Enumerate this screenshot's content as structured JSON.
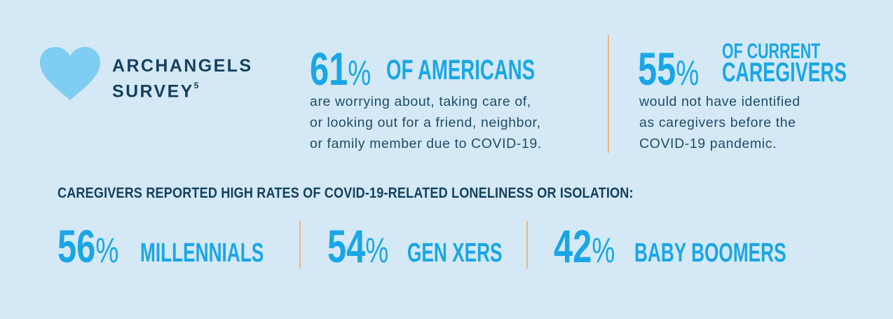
{
  "survey": {
    "title_line1": "ARCHANGELS",
    "title_line2": "SURVEY",
    "footnote": "5"
  },
  "stat_americans": {
    "number": "61",
    "percent": "%",
    "label": "OF AMERICANS",
    "description_lines": [
      "are worrying about, taking care of,",
      "or looking out for a friend, neighbor,",
      "or family member due to COVID-19."
    ]
  },
  "stat_caregivers": {
    "number": "55",
    "percent": "%",
    "label_line1": "OF CURRENT",
    "label_line2": "CAREGIVERS",
    "description_lines": [
      "would not have identified",
      "as caregivers before the",
      "COVID-19 pandemic."
    ]
  },
  "section_heading": "CAREGIVERS REPORTED HIGH RATES OF COVID-19-RELATED LONELINESS OR ISOLATION:",
  "generations": [
    {
      "number": "56",
      "percent": "%",
      "label": "MILLENNIALS"
    },
    {
      "number": "54",
      "percent": "%",
      "label": "GEN XERS"
    },
    {
      "number": "42",
      "percent": "%",
      "label": "BABY BOOMERS"
    }
  ],
  "colors": {
    "background": "#d4e9f5",
    "accent_blue": "#1aa6e6",
    "heart": "#7fcdf3",
    "dark_text": "#15405e",
    "divider": "#f0b47d"
  },
  "icons": {
    "logo": "heart-icon"
  }
}
